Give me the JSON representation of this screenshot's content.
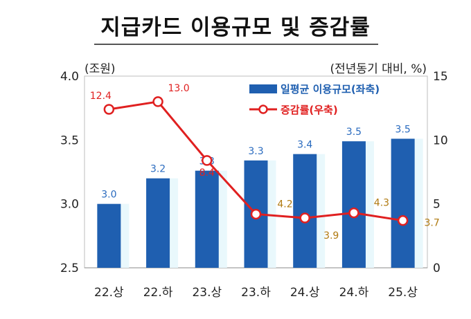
{
  "title": "지급카드 이용규모 및 증감률",
  "chart_data": {
    "type": "bar",
    "categories": [
      "22.상",
      "22.하",
      "23.상",
      "23.하",
      "24.상",
      "24.하",
      "25.상"
    ],
    "left_axis": {
      "unit_label": "(조원)",
      "range": [
        2.5,
        4.0
      ],
      "ticks": [
        "2.5",
        "3.0",
        "3.5",
        "4.0"
      ]
    },
    "right_axis": {
      "unit_label": "(전년동기 대비, %)",
      "range": [
        0,
        15
      ],
      "ticks": [
        "0",
        "5",
        "10",
        "15"
      ]
    },
    "series": [
      {
        "name": "일평균 이용규모(좌축)",
        "type": "bar",
        "axis": "left",
        "color": "#1f5fb0",
        "values": [
          3.0,
          3.2,
          3.26,
          3.34,
          3.39,
          3.49,
          3.51
        ],
        "labels": [
          "3.0",
          "3.2",
          "3.3",
          "3.3",
          "3.4",
          "3.5",
          "3.5"
        ]
      },
      {
        "name": "증감률(우축)",
        "type": "line",
        "axis": "right",
        "color": "#e02020",
        "values": [
          12.4,
          13.0,
          8.4,
          4.2,
          3.9,
          4.3,
          3.7
        ],
        "labels": [
          "12.4",
          "13.0",
          "8.4",
          "4.2",
          "3.9",
          "4.3",
          "3.7"
        ]
      }
    ],
    "legend_position": "top-right",
    "grid": false
  }
}
